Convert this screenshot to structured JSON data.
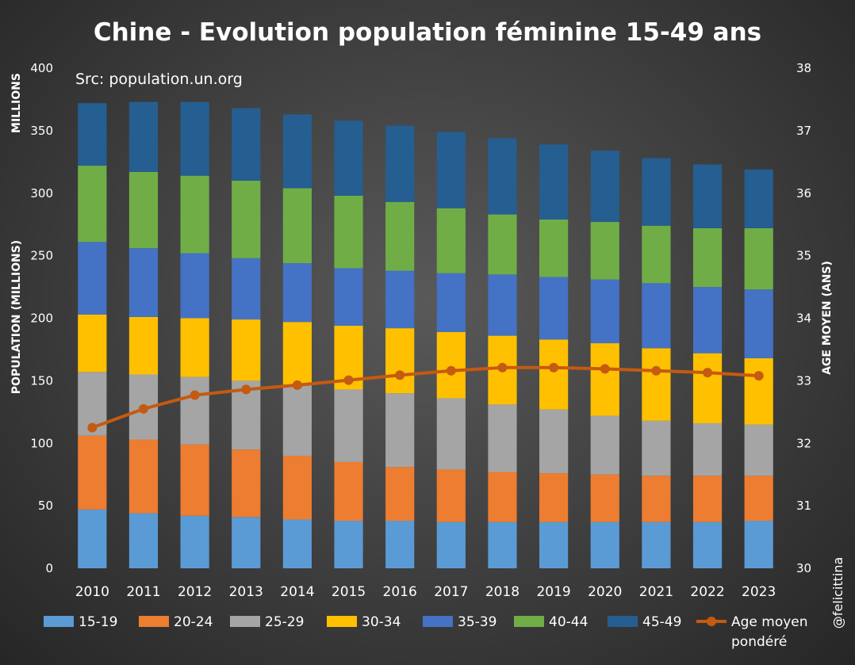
{
  "chart_data": {
    "type": "bar",
    "stacked": true,
    "title": "Chine - Evolution population féminine 15-49 ans",
    "source_note": "Src: population.un.org",
    "credit": "@felicittina",
    "units_label": "MILLIONS",
    "ylabel": "POPULATION (MILLIONS)",
    "y2label": "AGE MOYEN (ANS)",
    "ylim": [
      0,
      400
    ],
    "y2lim": [
      30,
      38
    ],
    "yticks": [
      "0",
      "50",
      "100",
      "150",
      "200",
      "250",
      "300",
      "350",
      "400"
    ],
    "y2ticks": [
      "30",
      "31",
      "32",
      "33",
      "34",
      "35",
      "36",
      "37",
      "38"
    ],
    "grid": false,
    "legend_position": "bottom",
    "categories": [
      "2010",
      "2011",
      "2012",
      "2013",
      "2014",
      "2015",
      "2016",
      "2017",
      "2018",
      "2019",
      "2020",
      "2021",
      "2022",
      "2023"
    ],
    "series": [
      {
        "name": "15-19",
        "color": "#5b9bd5",
        "values": [
          47,
          44,
          42,
          41,
          39,
          38,
          38,
          37,
          37,
          37,
          37,
          37,
          37,
          38
        ]
      },
      {
        "name": "20-24",
        "color": "#ed7d31",
        "values": [
          59,
          59,
          57,
          54,
          51,
          47,
          43,
          42,
          40,
          39,
          38,
          37,
          37,
          36
        ]
      },
      {
        "name": "25-29",
        "color": "#a5a5a5",
        "values": [
          51,
          52,
          54,
          55,
          57,
          58,
          59,
          57,
          54,
          51,
          47,
          44,
          42,
          41
        ]
      },
      {
        "name": "30-34",
        "color": "#ffc000",
        "values": [
          46,
          46,
          47,
          49,
          50,
          51,
          52,
          53,
          55,
          56,
          58,
          58,
          56,
          53
        ]
      },
      {
        "name": "35-39",
        "color": "#4472c4",
        "values": [
          58,
          55,
          52,
          49,
          47,
          46,
          46,
          47,
          49,
          50,
          51,
          52,
          53,
          55
        ]
      },
      {
        "name": "40-44",
        "color": "#70ad47",
        "values": [
          61,
          61,
          62,
          62,
          60,
          58,
          55,
          52,
          48,
          46,
          46,
          46,
          47,
          49
        ]
      },
      {
        "name": "45-49",
        "color": "#255e91",
        "values": [
          50,
          56,
          59,
          58,
          59,
          60,
          61,
          61,
          61,
          60,
          57,
          54,
          51,
          47
        ]
      }
    ],
    "line": {
      "name": "Age moyen pondéré",
      "color": "#c55a11",
      "axis": "right",
      "values": [
        32.25,
        32.55,
        32.77,
        32.86,
        32.93,
        33.01,
        33.09,
        33.16,
        33.21,
        33.21,
        33.19,
        33.16,
        33.13,
        33.08
      ]
    }
  }
}
